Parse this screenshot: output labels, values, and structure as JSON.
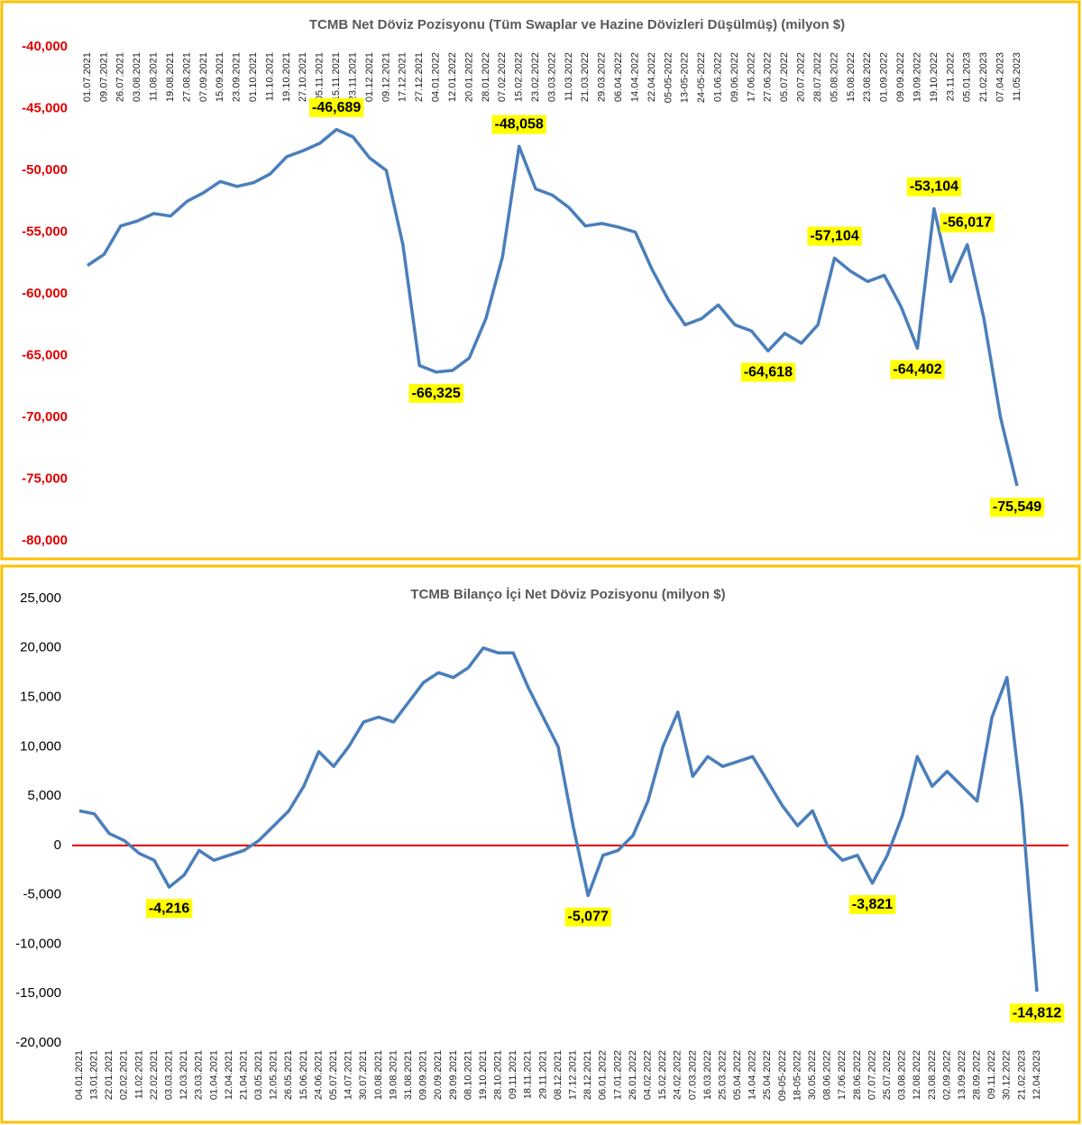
{
  "chart_data": [
    {
      "type": "line",
      "title": "TCMB Net Döviz Pozisyonu (Tüm Swaplar ve Hazine Dövizleri Düşülmüş) (milyon $)",
      "categories": [
        "01.07.2021",
        "09.07.2021",
        "26.07.2021",
        "03.08.2021",
        "11.08.2021",
        "19.08.2021",
        "27.08.2021",
        "07.09.2021",
        "15.09.2021",
        "23.09.2021",
        "01.10.2021",
        "11.10.2021",
        "19.10.2021",
        "27.10.2021",
        "05.11.2021",
        "15.11.2021",
        "23.11.2021",
        "01.12.2021",
        "09.12.2021",
        "17.12.2021",
        "27.12.2021",
        "04.01.2022",
        "12.01.2022",
        "20.01.2022",
        "28.01.2022",
        "07.02.2022",
        "15.02.2022",
        "23.02.2022",
        "03.03.2022",
        "11.03.2022",
        "21.03.2022",
        "29.03.2022",
        "06.04.2022",
        "14.04.2022",
        "22.04.2022",
        "05-05-2022",
        "13-05-2022",
        "24-05-2022",
        "01.06.2022",
        "09.06.2022",
        "17.06.2022",
        "27.06.2022",
        "05.07.2022",
        "20.07.2022",
        "28.07.2022",
        "05.08.2022",
        "15.08.2022",
        "23.08.2022",
        "01.09.2022",
        "09.09.2022",
        "19.09.2022",
        "19.10.2022",
        "23.11.2022",
        "05.01.2023",
        "21.02.2023",
        "07.04.2023",
        "11.05.2023"
      ],
      "values": [
        -57700,
        -56800,
        -54500,
        -54100,
        -53500,
        -53700,
        -52500,
        -51800,
        -50900,
        -51300,
        -51000,
        -50300,
        -48900,
        -48400,
        -47800,
        -46689,
        -47300,
        -49000,
        -50000,
        -56000,
        -65800,
        -66325,
        -66200,
        -65200,
        -62000,
        -57000,
        -48058,
        -51500,
        -52000,
        -53000,
        -54500,
        -54300,
        -54600,
        -55000,
        -58000,
        -60500,
        -62500,
        -62000,
        -60900,
        -62500,
        -63000,
        -64618,
        -63200,
        -64000,
        -62500,
        -57104,
        -58200,
        -59000,
        -58500,
        -61000,
        -64402,
        -53104,
        -59000,
        -56017,
        -62000,
        -70000,
        -75549
      ],
      "value_labels": [
        null,
        null,
        null,
        null,
        null,
        null,
        null,
        null,
        null,
        null,
        null,
        null,
        null,
        null,
        null,
        "-46,689",
        null,
        null,
        null,
        null,
        null,
        "-66,325",
        null,
        null,
        null,
        null,
        "-48,058",
        null,
        null,
        null,
        null,
        null,
        null,
        null,
        null,
        null,
        null,
        null,
        null,
        null,
        null,
        "-64,618",
        null,
        null,
        null,
        "-57,104",
        null,
        null,
        null,
        null,
        "-64,402",
        "-53,104",
        null,
        "-56,017",
        null,
        null,
        "-75,549"
      ],
      "color": "#4a7ebb",
      "label_background": "#ffff00",
      "ytick_color": "#e00000",
      "category_axis": "top",
      "ylim": [
        -80000,
        -40000
      ],
      "yticks": [
        {
          "value": -40000,
          "label": "-40,000"
        },
        {
          "value": -45000,
          "label": "-45,000"
        },
        {
          "value": -50000,
          "label": "-50,000"
        },
        {
          "value": -55000,
          "label": "-55,000"
        },
        {
          "value": -60000,
          "label": "-60,000"
        },
        {
          "value": -65000,
          "label": "-65,000"
        },
        {
          "value": -70000,
          "label": "-70,000"
        },
        {
          "value": -75000,
          "label": "-75,000"
        },
        {
          "value": -80000,
          "label": "-80,000"
        }
      ],
      "grid": false
    },
    {
      "type": "line",
      "title": "TCMB Bilanço İçi Net Döviz Pozisyonu (milyon $)",
      "categories": [
        "04.01.2021",
        "13.01.2021",
        "22.01.2021",
        "02.02.2021",
        "11.02.2021",
        "22.02.2021",
        "03.03.2021",
        "12.03.2021",
        "23.03.2021",
        "01.04.2021",
        "12.04.2021",
        "21.04.2021",
        "03.05.2021",
        "12.05.2021",
        "26.05.2021",
        "15.06.2021",
        "24.06.2021",
        "05.07.2021",
        "14.07.2021",
        "30.07.2021",
        "10.08.2021",
        "19.08.2021",
        "31.08.2021",
        "09.09.2021",
        "20.09.2021",
        "29.09.2021",
        "08.10.2021",
        "19.10.2021",
        "28.10.2021",
        "09.11.2021",
        "18.11.2021",
        "29.11.2021",
        "08.12.2021",
        "17.12.2021",
        "28.12.2021",
        "06.01.2022",
        "17.01.2022",
        "26.01.2022",
        "04.02.2022",
        "15.02.2022",
        "24.02.2022",
        "07.03.2022",
        "16.03.2022",
        "25.03.2022",
        "05.04.2022",
        "14.04.2022",
        "25.04.2022",
        "09-05-2022",
        "18-05-2022",
        "30.05.2022",
        "08.06.2022",
        "17.06.2022",
        "28.06.2022",
        "07.07.2022",
        "25.07.2022",
        "03.08.2022",
        "12.08.2022",
        "23.08.2022",
        "02.09.2022",
        "13.09.2022",
        "28.09.2022",
        "09.11.2022",
        "30.12.2022",
        "21.02.2023",
        "12.04.2023"
      ],
      "values": [
        3500,
        3200,
        1200,
        500,
        -800,
        -1500,
        -4216,
        -3000,
        -500,
        -1500,
        -1000,
        -500,
        500,
        2000,
        3500,
        6000,
        9500,
        8000,
        10000,
        12500,
        13000,
        12500,
        14500,
        16500,
        17500,
        17000,
        18000,
        20000,
        19500,
        19500,
        16000,
        13000,
        10000,
        2000,
        -5077,
        -1000,
        -500,
        1000,
        4500,
        10000,
        13500,
        7000,
        9000,
        8000,
        8500,
        9000,
        6500,
        4000,
        2000,
        3500,
        0,
        -1500,
        -1000,
        -3821,
        -1000,
        3000,
        9000,
        6000,
        7500,
        6000,
        4500,
        13000,
        17000,
        4000,
        -14812
      ],
      "value_labels": [
        null,
        null,
        null,
        null,
        null,
        null,
        "-4,216",
        null,
        null,
        null,
        null,
        null,
        null,
        null,
        null,
        null,
        null,
        null,
        null,
        null,
        null,
        null,
        null,
        null,
        null,
        null,
        null,
        null,
        null,
        null,
        null,
        null,
        null,
        null,
        "-5,077",
        null,
        null,
        null,
        null,
        null,
        null,
        null,
        null,
        null,
        null,
        null,
        null,
        null,
        null,
        null,
        null,
        null,
        null,
        "-3,821",
        null,
        null,
        null,
        null,
        null,
        null,
        null,
        null,
        null,
        null,
        "-14,812"
      ],
      "color": "#4a7ebb",
      "label_background": "#ffff00",
      "ytick_color": "#000000",
      "category_axis": "bottom",
      "hline": {
        "value": 0,
        "color": "#e00000"
      },
      "ylim": [
        -20000,
        25000
      ],
      "yticks": [
        {
          "value": -20000,
          "label": "-20,000"
        },
        {
          "value": -15000,
          "label": "-15,000"
        },
        {
          "value": -10000,
          "label": "-10,000"
        },
        {
          "value": -5000,
          "label": "-5,000"
        },
        0,
        {
          "value": 5000,
          "label": "5,000"
        },
        {
          "value": 10000,
          "label": "10,000"
        },
        {
          "value": 15000,
          "label": "15,000"
        },
        {
          "value": 20000,
          "label": "20,000"
        },
        {
          "value": 25000,
          "label": "25,000"
        }
      ],
      "grid": false
    }
  ]
}
